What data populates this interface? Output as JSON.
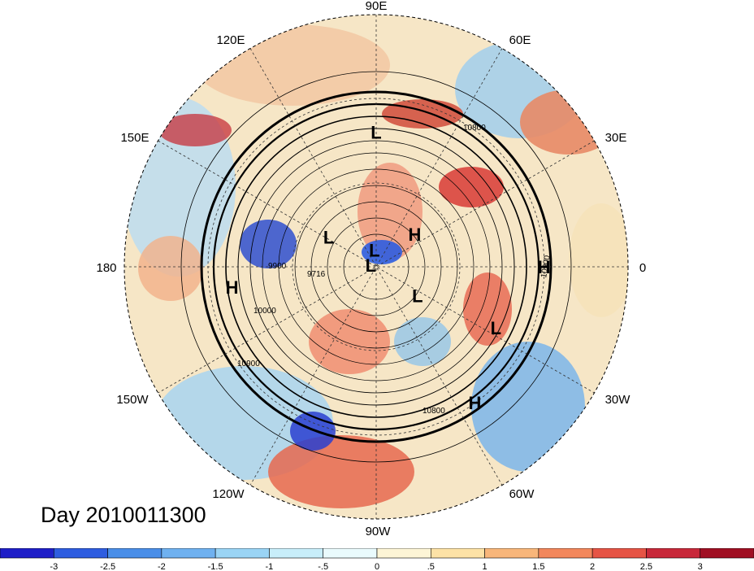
{
  "title": "Day 2010011300",
  "longitude_labels": [
    "90E",
    "60E",
    "30E",
    "0",
    "30W",
    "60W",
    "90W",
    "120W",
    "150W",
    "180",
    "150E",
    "120E"
  ],
  "pressure_centers": [
    {
      "label": "L",
      "lon": 90,
      "lat": 42
    },
    {
      "label": "H",
      "lon": -172,
      "lat": 38
    },
    {
      "label": "L",
      "lon": 148,
      "lat": 70
    },
    {
      "label": "L",
      "lon": 96,
      "lat": 84
    },
    {
      "label": "H",
      "lon": 40,
      "lat": 72
    },
    {
      "label": "L",
      "lon": 165,
      "lat": 88
    },
    {
      "label": "L",
      "lon": -35,
      "lat": 72
    },
    {
      "label": "H",
      "lon": 0,
      "lat": 30
    },
    {
      "label": "L",
      "lon": -27,
      "lat": 42
    },
    {
      "label": "H",
      "lon": -54,
      "lat": 30
    }
  ],
  "contour_labels": [
    "10800",
    "10900",
    "10000",
    "9900",
    "9716",
    "10900",
    "10800"
  ],
  "colorbar": {
    "colors": [
      "#1f1fc8",
      "#2e5de0",
      "#4a8ee8",
      "#6fb1f0",
      "#9ad4f5",
      "#c8eefa",
      "#eafbfd",
      "#fdf5d6",
      "#fde2a6",
      "#f8b67a",
      "#f2875c",
      "#e65445",
      "#c8283a",
      "#a00f23"
    ],
    "tick_labels": [
      "-3",
      "-2.5",
      "-2",
      "-1.5",
      "-1",
      "-.5",
      "0",
      ".5",
      "1",
      "1.5",
      "2",
      "2.5",
      "3"
    ]
  }
}
